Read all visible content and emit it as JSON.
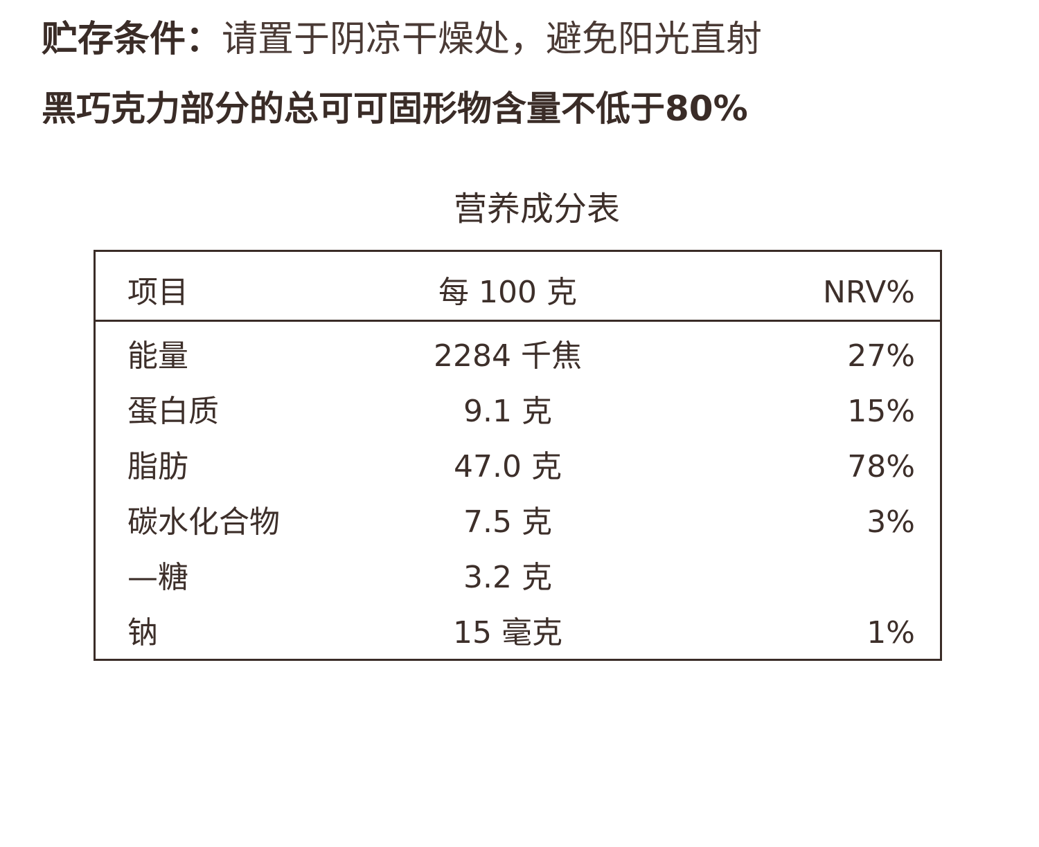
{
  "storage": {
    "label": "贮存条件：",
    "value": "请置于阴凉干燥处，避免阳光直射"
  },
  "cocoa_note": "黑巧克力部分的总可可固形物含量不低于80%",
  "nutrition": {
    "title": "营养成分表",
    "headers": {
      "item": "项目",
      "per100": "每 100 克",
      "nrv": "NRV%"
    },
    "rows": [
      {
        "item": "能量",
        "per100": "2284 千焦",
        "nrv": "27%"
      },
      {
        "item": "蛋白质",
        "per100": "9.1 克",
        "nrv": "15%"
      },
      {
        "item": "脂肪",
        "per100": "47.0 克",
        "nrv": "78%"
      },
      {
        "item": "碳水化合物",
        "per100": "7.5 克",
        "nrv": "3%"
      },
      {
        "item": "—糖",
        "per100": "3.2 克",
        "nrv": ""
      },
      {
        "item": "钠",
        "per100": "15 毫克",
        "nrv": "1%"
      }
    ]
  }
}
